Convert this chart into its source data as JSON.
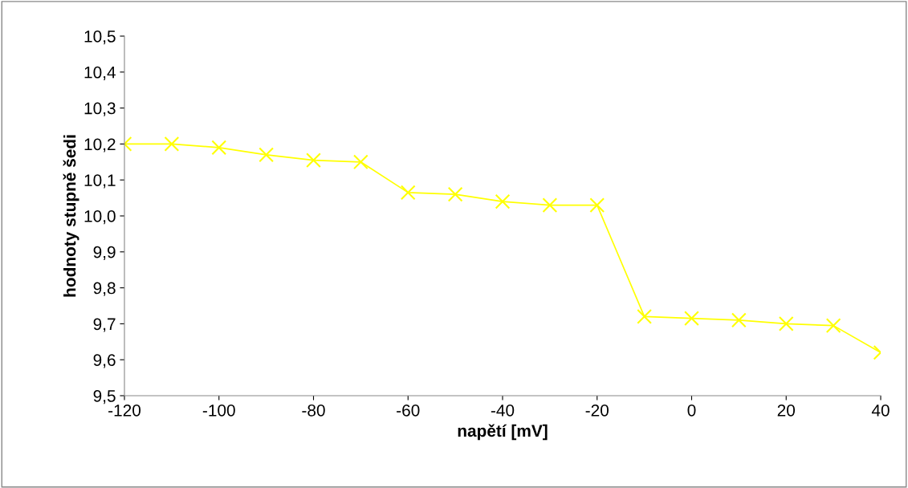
{
  "chart_data": {
    "type": "line",
    "xlabel": "napětí [mV]",
    "ylabel": "hodnoty stupně šedi",
    "x": [
      -120,
      -110,
      -100,
      -90,
      -80,
      -70,
      -60,
      -50,
      -40,
      -30,
      -20,
      -10,
      0,
      10,
      20,
      30,
      40
    ],
    "series": [
      {
        "color": "#ffff00",
        "values": [
          10.2,
          10.2,
          10.19,
          10.17,
          10.155,
          10.15,
          10.065,
          10.06,
          10.04,
          10.03,
          10.03,
          9.72,
          9.715,
          9.71,
          9.7,
          9.695,
          9.62
        ]
      }
    ],
    "xlim": [
      -120,
      40
    ],
    "xticks": [
      -120,
      -100,
      -80,
      -60,
      -40,
      -20,
      0,
      20,
      40
    ],
    "ylim": [
      9.5,
      10.5
    ],
    "yticks": [
      {
        "value": 9.5,
        "label": "9,5"
      },
      {
        "value": 9.6,
        "label": "9,6"
      },
      {
        "value": 9.7,
        "label": "9,7"
      },
      {
        "value": 9.8,
        "label": "9,8"
      },
      {
        "value": 9.9,
        "label": "9,9"
      },
      {
        "value": 10.0,
        "label": "10,0"
      },
      {
        "value": 10.1,
        "label": "10,1"
      },
      {
        "value": 10.2,
        "label": "10,2"
      },
      {
        "value": 10.3,
        "label": "10,3"
      },
      {
        "value": 10.4,
        "label": "10,4"
      },
      {
        "value": 10.5,
        "label": "10,5"
      }
    ],
    "grid": false,
    "legend": false,
    "marker": "cross",
    "line_style": "solid"
  }
}
